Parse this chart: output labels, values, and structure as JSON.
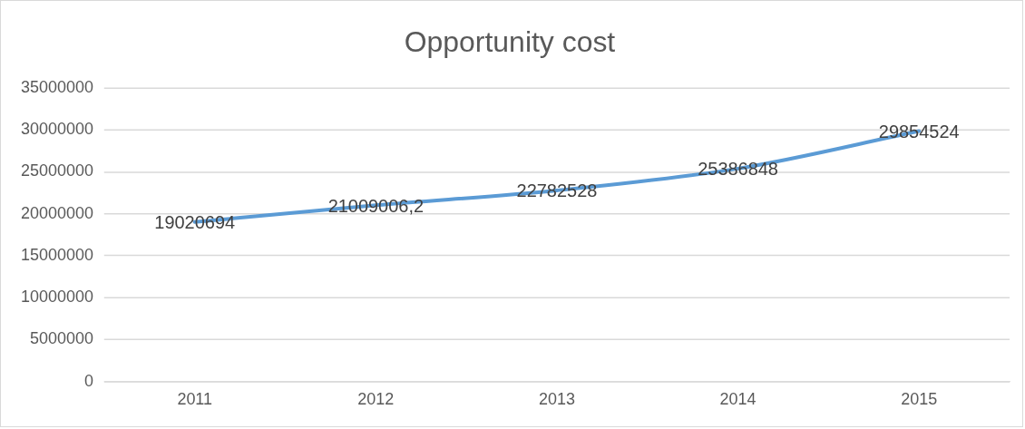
{
  "chart_data": {
    "type": "line",
    "title": "Opportunity cost",
    "categories": [
      "2011",
      "2012",
      "2013",
      "2014",
      "2015"
    ],
    "series": [
      {
        "color": "#5b9bd5",
        "values": [
          19020694,
          21009006.2,
          22782528,
          25386848,
          29854524
        ],
        "value_labels": [
          "19020694",
          "21009006,2",
          "22782528",
          "25386848",
          "29854524"
        ]
      }
    ],
    "ylim": [
      0,
      35000000
    ],
    "yticks": [
      0,
      5000000,
      10000000,
      15000000,
      20000000,
      25000000,
      30000000,
      35000000
    ],
    "grid": "y",
    "legend": false,
    "marker": "none",
    "line_style": "solid"
  }
}
